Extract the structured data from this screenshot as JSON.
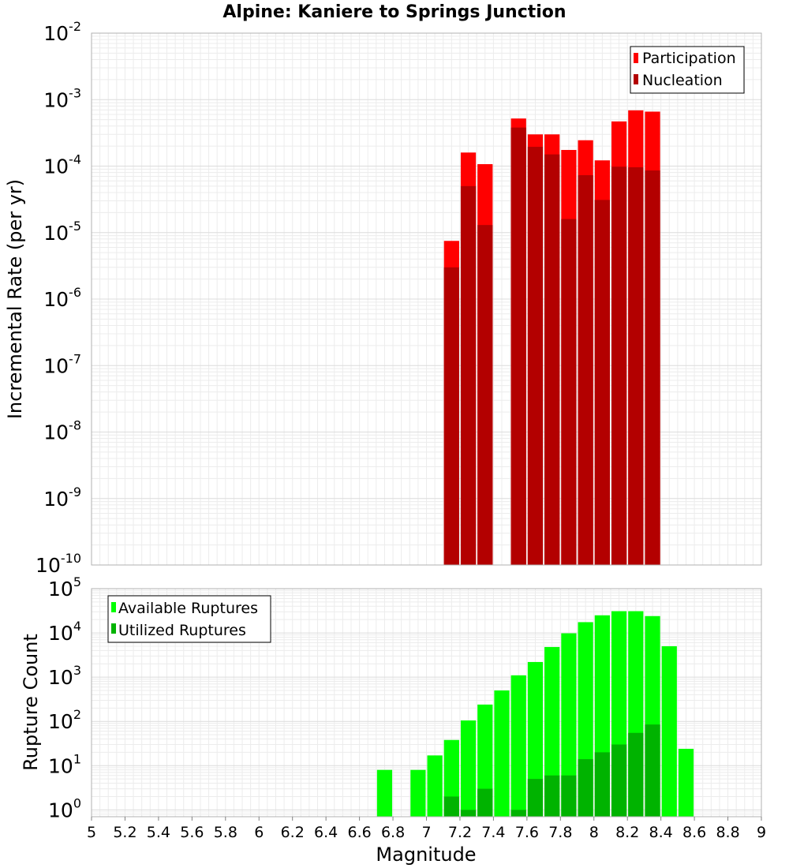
{
  "chart_data": [
    {
      "type": "bar",
      "title": "Alpine: Kaniere to Springs Junction",
      "xlabel": "",
      "ylabel": "Incremental Rate (per yr)",
      "yscale": "log",
      "xlim": [
        5,
        9
      ],
      "ylim": [
        1e-10,
        0.01
      ],
      "y_tick_bases": [
        "10",
        "10",
        "10",
        "10",
        "10",
        "10",
        "10",
        "10",
        "10"
      ],
      "y_tick_exponents": [
        "-10",
        "-9",
        "-8",
        "-7",
        "-6",
        "-5",
        "-4",
        "-3",
        "-2"
      ],
      "legend": {
        "placement": "top-right",
        "entries": [
          "Participation",
          "Nucleation"
        ]
      },
      "bar_width": 0.1,
      "series": [
        {
          "name": "Participation",
          "color": "#ff0000",
          "points": [
            {
              "x": 7.15,
              "y": 7.5e-06
            },
            {
              "x": 7.25,
              "y": 0.00016
            },
            {
              "x": 7.35,
              "y": 0.000107
            },
            {
              "x": 7.55,
              "y": 0.00052
            },
            {
              "x": 7.65,
              "y": 0.0003
            },
            {
              "x": 7.75,
              "y": 0.0003
            },
            {
              "x": 7.85,
              "y": 0.000175
            },
            {
              "x": 7.95,
              "y": 0.000245
            },
            {
              "x": 8.05,
              "y": 0.000122
            },
            {
              "x": 8.15,
              "y": 0.00047
            },
            {
              "x": 8.25,
              "y": 0.00069
            },
            {
              "x": 8.35,
              "y": 0.00066
            }
          ]
        },
        {
          "name": "Nucleation",
          "color": "#b30000",
          "points": [
            {
              "x": 7.15,
              "y": 3e-06
            },
            {
              "x": 7.25,
              "y": 5e-05
            },
            {
              "x": 7.35,
              "y": 1.3e-05
            },
            {
              "x": 7.55,
              "y": 0.00038
            },
            {
              "x": 7.65,
              "y": 0.000195
            },
            {
              "x": 7.75,
              "y": 0.00015
            },
            {
              "x": 7.85,
              "y": 1.6e-05
            },
            {
              "x": 7.95,
              "y": 7.3e-05
            },
            {
              "x": 8.05,
              "y": 3.1e-05
            },
            {
              "x": 8.15,
              "y": 9.8e-05
            },
            {
              "x": 8.25,
              "y": 9.6e-05
            },
            {
              "x": 8.35,
              "y": 8.6e-05
            }
          ]
        }
      ]
    },
    {
      "type": "bar",
      "title": "",
      "xlabel": "Magnitude",
      "ylabel": "Rupture Count",
      "yscale": "log",
      "xlim": [
        5,
        9
      ],
      "ylim": [
        0.7,
        100000.0
      ],
      "x_ticks": [
        "5",
        "5.2",
        "5.4",
        "5.6",
        "5.8",
        "6",
        "6.2",
        "6.4",
        "6.6",
        "6.8",
        "7",
        "7.2",
        "7.4",
        "7.6",
        "7.8",
        "8",
        "8.2",
        "8.4",
        "8.6",
        "8.8",
        "9"
      ],
      "y_tick_bases": [
        "10",
        "10",
        "10",
        "10",
        "10",
        "10"
      ],
      "y_tick_exponents": [
        "0",
        "1",
        "2",
        "3",
        "4",
        "5"
      ],
      "legend": {
        "placement": "top-left",
        "entries": [
          "Available Ruptures",
          "Utilized Ruptures"
        ]
      },
      "bar_width": 0.1,
      "series": [
        {
          "name": "Available Ruptures",
          "color": "#00ff00",
          "points": [
            {
              "x": 6.75,
              "y": 8
            },
            {
              "x": 6.95,
              "y": 8
            },
            {
              "x": 7.05,
              "y": 17
            },
            {
              "x": 7.15,
              "y": 38
            },
            {
              "x": 7.25,
              "y": 105
            },
            {
              "x": 7.35,
              "y": 240
            },
            {
              "x": 7.45,
              "y": 500
            },
            {
              "x": 7.55,
              "y": 1100
            },
            {
              "x": 7.65,
              "y": 2200
            },
            {
              "x": 7.75,
              "y": 4800
            },
            {
              "x": 7.85,
              "y": 9800
            },
            {
              "x": 7.95,
              "y": 17500
            },
            {
              "x": 8.05,
              "y": 25000
            },
            {
              "x": 8.15,
              "y": 31000
            },
            {
              "x": 8.25,
              "y": 31000
            },
            {
              "x": 8.35,
              "y": 24000
            },
            {
              "x": 8.45,
              "y": 5000
            },
            {
              "x": 8.55,
              "y": 24
            }
          ]
        },
        {
          "name": "Utilized Ruptures",
          "color": "#00b300",
          "points": [
            {
              "x": 7.15,
              "y": 2
            },
            {
              "x": 7.25,
              "y": 1
            },
            {
              "x": 7.35,
              "y": 3
            },
            {
              "x": 7.55,
              "y": 1
            },
            {
              "x": 7.65,
              "y": 5
            },
            {
              "x": 7.75,
              "y": 6
            },
            {
              "x": 7.85,
              "y": 6
            },
            {
              "x": 7.95,
              "y": 14
            },
            {
              "x": 8.05,
              "y": 20
            },
            {
              "x": 8.15,
              "y": 30
            },
            {
              "x": 8.25,
              "y": 55
            },
            {
              "x": 8.35,
              "y": 85
            }
          ]
        }
      ]
    }
  ]
}
